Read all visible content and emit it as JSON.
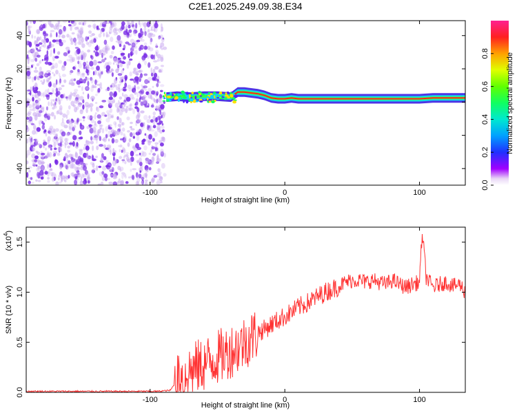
{
  "title": "C2E1.2025.249.09.38.E34",
  "chart_data": [
    {
      "type": "heatmap",
      "title": "C2E1.2025.249.09.38.E34",
      "xlabel": "Height of straight line (km)",
      "ylabel": "Frequency (Hz)",
      "xlim": [
        -192,
        134
      ],
      "ylim": [
        -50,
        49
      ],
      "xticks": [
        -100,
        0,
        100
      ],
      "yticks": [
        -40,
        -20,
        0,
        20,
        40
      ],
      "xtick_labels": [
        "-100",
        "0",
        "100"
      ],
      "ytick_labels": [
        "-40",
        "-20",
        "0",
        "20",
        "40"
      ],
      "noise_region_x": [
        -192,
        -89
      ],
      "signal_track": {
        "x": [
          -88,
          -80,
          -70,
          -60,
          -50,
          -40,
          -35,
          -30,
          -25,
          -20,
          -15,
          -10,
          -5,
          0,
          5,
          10,
          20,
          40,
          60,
          80,
          100,
          110,
          134
        ],
        "freq": [
          3,
          3.5,
          3,
          3.5,
          3.5,
          3,
          6,
          6,
          5.5,
          5,
          4,
          2.5,
          2,
          2,
          2.5,
          2,
          2,
          2,
          2,
          2,
          2,
          2.5,
          2.5
        ]
      },
      "colorbar": {
        "label": "Normalized spectral amplitude",
        "range": [
          0,
          1
        ],
        "ticks": [
          0.0,
          0.2,
          0.4,
          0.6,
          0.8
        ],
        "tick_labels": [
          "0.0",
          "0.2",
          "0.4",
          "0.6",
          "0.8"
        ]
      }
    },
    {
      "type": "line",
      "xlabel": "Height of straight line (km)",
      "ylabel": "SNR (10 * v/v)",
      "multiplier": "(x10",
      "multiplier_exp": "4",
      "multiplier_close": ")",
      "xlim": [
        -192,
        134
      ],
      "ylim": [
        0,
        1.65
      ],
      "xticks": [
        -100,
        0,
        100
      ],
      "yticks": [
        0.0,
        0.5,
        1.0,
        1.5
      ],
      "xtick_labels": [
        "-100",
        "0",
        "100"
      ],
      "ytick_labels": [
        "0.0",
        "0.5",
        "1.0",
        "1.5"
      ],
      "series": [
        {
          "name": "SNR",
          "color": "#ff3333",
          "x": [
            -192,
            -170,
            -150,
            -130,
            -110,
            -95,
            -85,
            -80,
            -75,
            -70,
            -65,
            -60,
            -55,
            -50,
            -45,
            -40,
            -35,
            -30,
            -25,
            -20,
            -15,
            -10,
            -5,
            0,
            5,
            10,
            15,
            20,
            25,
            30,
            35,
            40,
            45,
            50,
            55,
            60,
            65,
            70,
            75,
            80,
            85,
            90,
            95,
            100,
            102,
            105,
            110,
            115,
            120,
            125,
            130,
            134
          ],
          "y": [
            0.01,
            0.01,
            0.01,
            0.01,
            0.01,
            0.01,
            0.02,
            0.12,
            0.18,
            0.22,
            0.25,
            0.28,
            0.32,
            0.35,
            0.38,
            0.42,
            0.45,
            0.5,
            0.55,
            0.6,
            0.63,
            0.68,
            0.72,
            0.76,
            0.8,
            0.85,
            0.88,
            0.92,
            0.96,
            1.0,
            1.03,
            1.06,
            1.1,
            1.12,
            1.12,
            1.1,
            1.12,
            1.1,
            1.08,
            1.12,
            1.08,
            1.05,
            1.08,
            1.1,
            1.6,
            1.15,
            1.05,
            1.08,
            1.1,
            1.06,
            1.08,
            1.0
          ]
        }
      ]
    }
  ],
  "colors": {
    "noise": "#7a2ee6",
    "noise_light": "#c8a8f0",
    "line": "#ff3333",
    "axis": "#000000"
  }
}
